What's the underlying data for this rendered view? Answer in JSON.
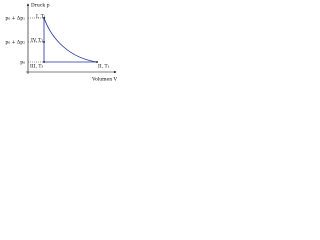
{
  "axes": {
    "y_label": "Druck p",
    "x_label": "Volumen V"
  },
  "pressure_labels": [
    "p₀ + Δp₁",
    "p₀ + Δp₂",
    "p₀"
  ],
  "states": [
    {
      "label": "I, T₁"
    },
    {
      "label": "IV, T₂"
    },
    {
      "label": "III, T₃"
    },
    {
      "label": "II, T₁"
    }
  ]
}
